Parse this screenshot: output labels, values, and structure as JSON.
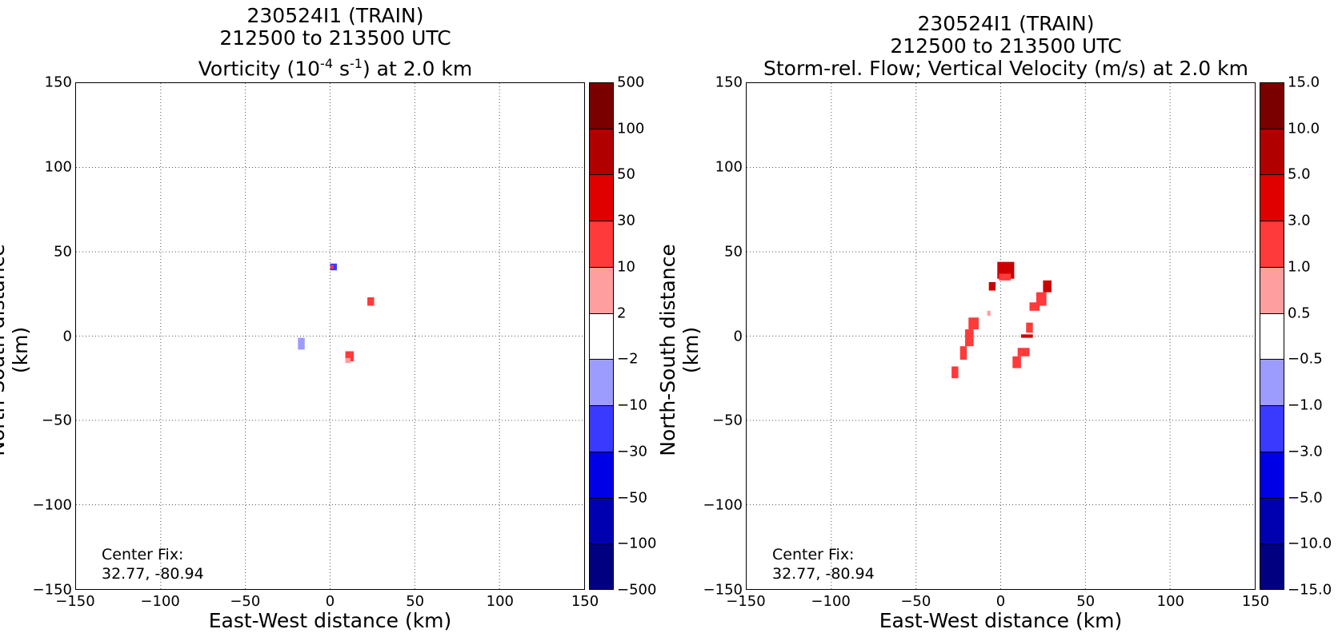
{
  "chart_data": [
    {
      "type": "heatmap",
      "title_lines": [
        "230524I1 (TRAIN)",
        "212500 to 213500 UTC"
      ],
      "subtitle": {
        "pre": "Vorticity (10",
        "sup1": "-4",
        "mid": " s",
        "sup2": "-1",
        "post": ") at 2.0 km"
      },
      "xlabel": "East-West distance (km)",
      "ylabel": "North-South distance (km)",
      "xlim": [
        -150,
        150
      ],
      "ylim": [
        -150,
        150
      ],
      "xticks": [
        "−150",
        "−100",
        "−50",
        "0",
        "50",
        "100",
        "150"
      ],
      "yticks": [
        "150",
        "100",
        "50",
        "0",
        "−50",
        "−100",
        "−150"
      ],
      "grid": true,
      "annotation": [
        "Center Fix:",
        "32.77, -80.94"
      ],
      "colorbar": {
        "labels": [
          "500",
          "100",
          "50",
          "30",
          "10",
          "2",
          "−2",
          "−10",
          "−30",
          "−50",
          "−100",
          "−500"
        ],
        "colors": [
          "#7a0000",
          "#b00000",
          "#e00000",
          "#ff3a3a",
          "#ff9e9e",
          "#ffffff",
          "#9c9cff",
          "#3a3aff",
          "#0000e6",
          "#0000b0",
          "#000080"
        ]
      },
      "features": [
        {
          "x": [
            0,
            4
          ],
          "y": [
            39,
            43
          ],
          "color": "#3a3aff"
        },
        {
          "x": [
            0,
            2
          ],
          "y": [
            40,
            42
          ],
          "color": "#ff3a3a"
        },
        {
          "x": [
            22,
            26
          ],
          "y": [
            18,
            23
          ],
          "color": "#ff3a3a"
        },
        {
          "x": [
            -19,
            -15
          ],
          "y": [
            -8,
            -1
          ],
          "color": "#9c9cff"
        },
        {
          "x": [
            9,
            14
          ],
          "y": [
            -15,
            -9
          ],
          "color": "#ff3a3a"
        },
        {
          "x": [
            9,
            12
          ],
          "y": [
            -16,
            -13
          ],
          "color": "#ff9e9e"
        }
      ]
    },
    {
      "type": "heatmap",
      "title_lines": [
        "230524I1 (TRAIN)",
        "212500 to 213500 UTC",
        "Storm-rel. Flow; Vertical Velocity (m/s) at 2.0 km"
      ],
      "xlabel": "East-West distance (km)",
      "ylabel": "North-South distance (km)",
      "xlim": [
        -150,
        150
      ],
      "ylim": [
        -150,
        150
      ],
      "xticks": [
        "−150",
        "−100",
        "−50",
        "0",
        "50",
        "100",
        "150"
      ],
      "yticks": [
        "150",
        "100",
        "50",
        "0",
        "−50",
        "−100",
        "−150"
      ],
      "grid": true,
      "annotation": [
        "Center Fix:",
        "32.77, -80.94"
      ],
      "colorbar": {
        "labels": [
          "15.0",
          "10.0",
          "5.0",
          "3.0",
          "1.0",
          "0.5",
          "−0.5",
          "−1.0",
          "−3.0",
          "−5.0",
          "−10.0",
          "−15.0"
        ],
        "colors": [
          "#7a0000",
          "#b00000",
          "#e00000",
          "#ff3a3a",
          "#ff9e9e",
          "#ffffff",
          "#9c9cff",
          "#3a3aff",
          "#0000e6",
          "#0000b0",
          "#000080"
        ]
      },
      "features": [
        {
          "x": [
            -2,
            8
          ],
          "y": [
            34,
            44
          ],
          "color": "#cc0000"
        },
        {
          "x": [
            -7,
            -3
          ],
          "y": [
            27,
            32
          ],
          "color": "#cc0000"
        },
        {
          "x": [
            -1,
            6
          ],
          "y": [
            33,
            37
          ],
          "color": "#ff3a3a"
        },
        {
          "x": [
            -8,
            -6
          ],
          "y": [
            12,
            15
          ],
          "color": "#ff9e9e"
        },
        {
          "x": [
            -19,
            -13
          ],
          "y": [
            4,
            11
          ],
          "color": "#ff3a3a"
        },
        {
          "x": [
            -21,
            -16
          ],
          "y": [
            -6,
            4
          ],
          "color": "#ff3a3a"
        },
        {
          "x": [
            -24,
            -20
          ],
          "y": [
            -14,
            -6
          ],
          "color": "#ff3a3a"
        },
        {
          "x": [
            -29,
            -25
          ],
          "y": [
            -25,
            -18
          ],
          "color": "#ff3a3a"
        },
        {
          "x": [
            25,
            30
          ],
          "y": [
            26,
            33
          ],
          "color": "#cc0000"
        },
        {
          "x": [
            21,
            27
          ],
          "y": [
            18,
            26
          ],
          "color": "#ff3a3a"
        },
        {
          "x": [
            17,
            23
          ],
          "y": [
            15,
            20
          ],
          "color": "#ff3a3a"
        },
        {
          "x": [
            15,
            19
          ],
          "y": [
            2,
            8
          ],
          "color": "#ff3a3a"
        },
        {
          "x": [
            12,
            19
          ],
          "y": [
            -1,
            1
          ],
          "color": "#cc0000"
        },
        {
          "x": [
            10,
            17
          ],
          "y": [
            -12,
            -7
          ],
          "color": "#ff3a3a"
        },
        {
          "x": [
            7,
            12
          ],
          "y": [
            -19,
            -12
          ],
          "color": "#ff3a3a"
        }
      ]
    }
  ]
}
